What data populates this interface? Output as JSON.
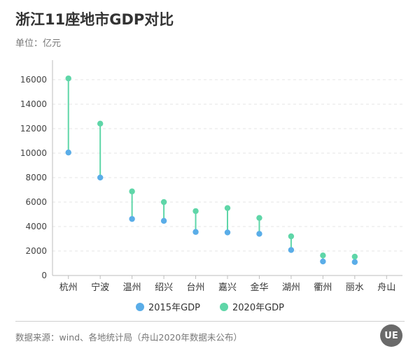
{
  "title": "浙江11座地市GDP对比",
  "subtitle": "单位：亿元",
  "source": "数据来源：wind、各地统计局（舟山2020年数据未公布）",
  "logo_text": "UE",
  "colors": {
    "s2015": "#5aade8",
    "s2020": "#5fd6a8",
    "grid": "#e6e6e6",
    "axis": "#bdbdbd"
  },
  "chart_data": {
    "type": "dumbbell",
    "categories": [
      "杭州",
      "宁波",
      "温州",
      "绍兴",
      "台州",
      "嘉兴",
      "金华",
      "湖州",
      "衢州",
      "丽水",
      "舟山"
    ],
    "series": [
      {
        "name": "2015年GDP",
        "values": [
          10050,
          8003,
          4620,
          4466,
          3558,
          3517,
          3406,
          2084,
          1146,
          1102,
          null
        ]
      },
      {
        "name": "2020年GDP",
        "values": [
          16106,
          12409,
          6871,
          6001,
          5263,
          5510,
          4704,
          3201,
          1639,
          1540,
          null
        ]
      }
    ],
    "yticks": [
      0,
      2000,
      4000,
      6000,
      8000,
      10000,
      12000,
      14000,
      16000
    ],
    "ylim": [
      0,
      16000
    ],
    "grid": true,
    "legend_position": "bottom"
  }
}
